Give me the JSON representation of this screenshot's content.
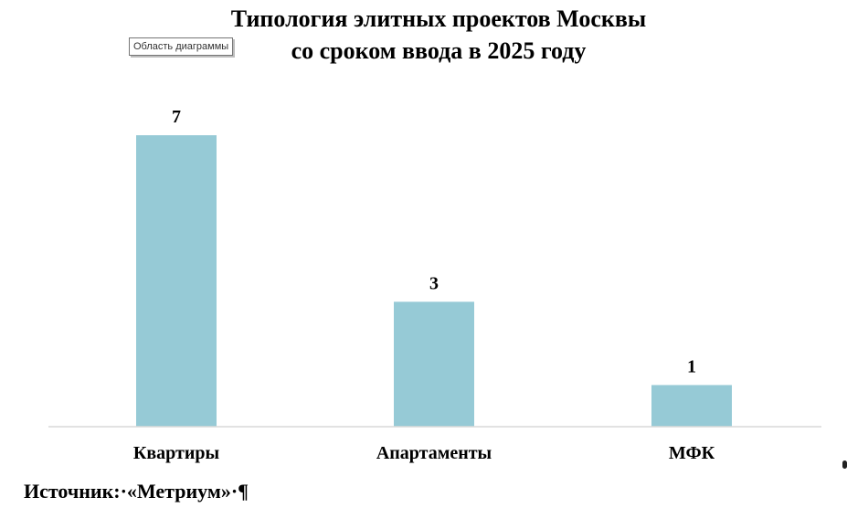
{
  "chart_data": {
    "type": "bar",
    "title_line1": "Типология элитных проектов Москвы",
    "title_line2": "со сроком ввода в 2025 году",
    "categories": [
      "Квартиры",
      "Апартаменты",
      "МФК"
    ],
    "values": [
      7,
      3,
      1
    ],
    "ylim": [
      0,
      7
    ],
    "bar_color": "#96cad6",
    "axis_color": "#d9d9d9",
    "data_labels": true,
    "grid": false,
    "legend": "none"
  },
  "tooltip": "Область диаграммы",
  "source_text": "Источник:·«Метриум»·¶"
}
